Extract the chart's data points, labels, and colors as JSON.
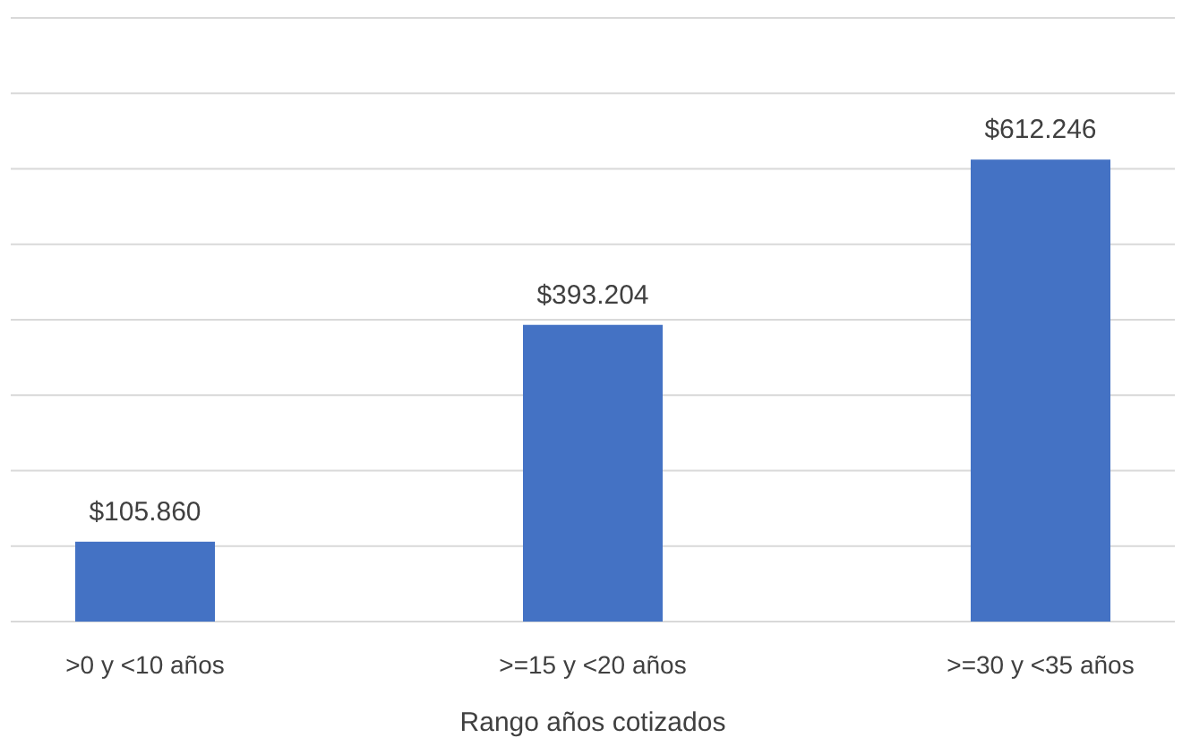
{
  "chart_data": {
    "type": "bar",
    "xlabel": "Rango años cotizados",
    "categories": [
      ">0 y <10 años",
      ">=15 y <20 años",
      ">=30 y <35 años"
    ],
    "values": [
      105860,
      393204,
      612246
    ],
    "value_labels": [
      "$105.860",
      "$393.204",
      "$612.246"
    ],
    "color": "#4472c4",
    "ylim": [
      0,
      800000
    ],
    "yticks": [
      {
        "value": 0,
        "label": null
      },
      {
        "value": 100000,
        "label": null
      },
      {
        "value": 200000,
        "label": null
      },
      {
        "value": 300000,
        "label": null
      },
      {
        "value": 400000,
        "label": null
      },
      {
        "value": 500000,
        "label": null
      },
      {
        "value": 600000,
        "label": null
      },
      {
        "value": 700000,
        "label": null
      },
      {
        "value": 800000,
        "label": null
      }
    ],
    "grid": "y",
    "tick_labels": "x"
  }
}
